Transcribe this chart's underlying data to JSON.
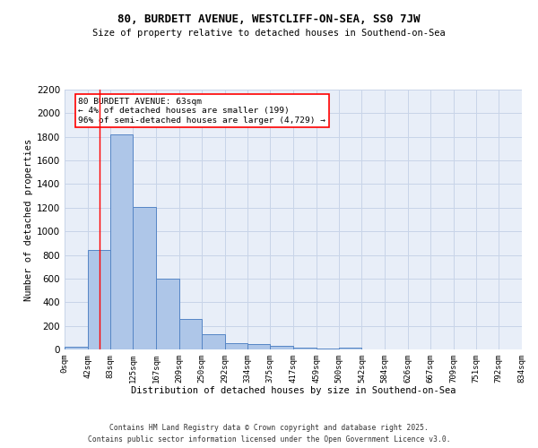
{
  "title": "80, BURDETT AVENUE, WESTCLIFF-ON-SEA, SS0 7JW",
  "subtitle": "Size of property relative to detached houses in Southend-on-Sea",
  "xlabel": "Distribution of detached houses by size in Southend-on-Sea",
  "ylabel": "Number of detached properties",
  "bin_edges": [
    0,
    42,
    83,
    125,
    167,
    209,
    250,
    292,
    334,
    375,
    417,
    459,
    500,
    542,
    584,
    626,
    667,
    709,
    751,
    792,
    834
  ],
  "bin_labels": [
    "0sqm",
    "42sqm",
    "83sqm",
    "125sqm",
    "167sqm",
    "209sqm",
    "250sqm",
    "292sqm",
    "334sqm",
    "375sqm",
    "417sqm",
    "459sqm",
    "500sqm",
    "542sqm",
    "584sqm",
    "626sqm",
    "667sqm",
    "709sqm",
    "751sqm",
    "792sqm",
    "834sqm"
  ],
  "bar_heights": [
    25,
    840,
    1820,
    1210,
    600,
    255,
    130,
    55,
    45,
    32,
    18,
    5,
    12,
    0,
    0,
    0,
    0,
    0,
    0,
    0
  ],
  "bar_color": "#aec6e8",
  "bar_edge_color": "#5585c5",
  "grid_color": "#c8d4e8",
  "bg_color": "#e8eef8",
  "annotation_text": "80 BURDETT AVENUE: 63sqm\n← 4% of detached houses are smaller (199)\n96% of semi-detached houses are larger (4,729) →",
  "annotation_box_color": "white",
  "annotation_box_edge_color": "red",
  "red_line_x": 63,
  "ylim": [
    0,
    2200
  ],
  "yticks": [
    0,
    200,
    400,
    600,
    800,
    1000,
    1200,
    1400,
    1600,
    1800,
    2000,
    2200
  ],
  "footer_line1": "Contains HM Land Registry data © Crown copyright and database right 2025.",
  "footer_line2": "Contains public sector information licensed under the Open Government Licence v3.0."
}
